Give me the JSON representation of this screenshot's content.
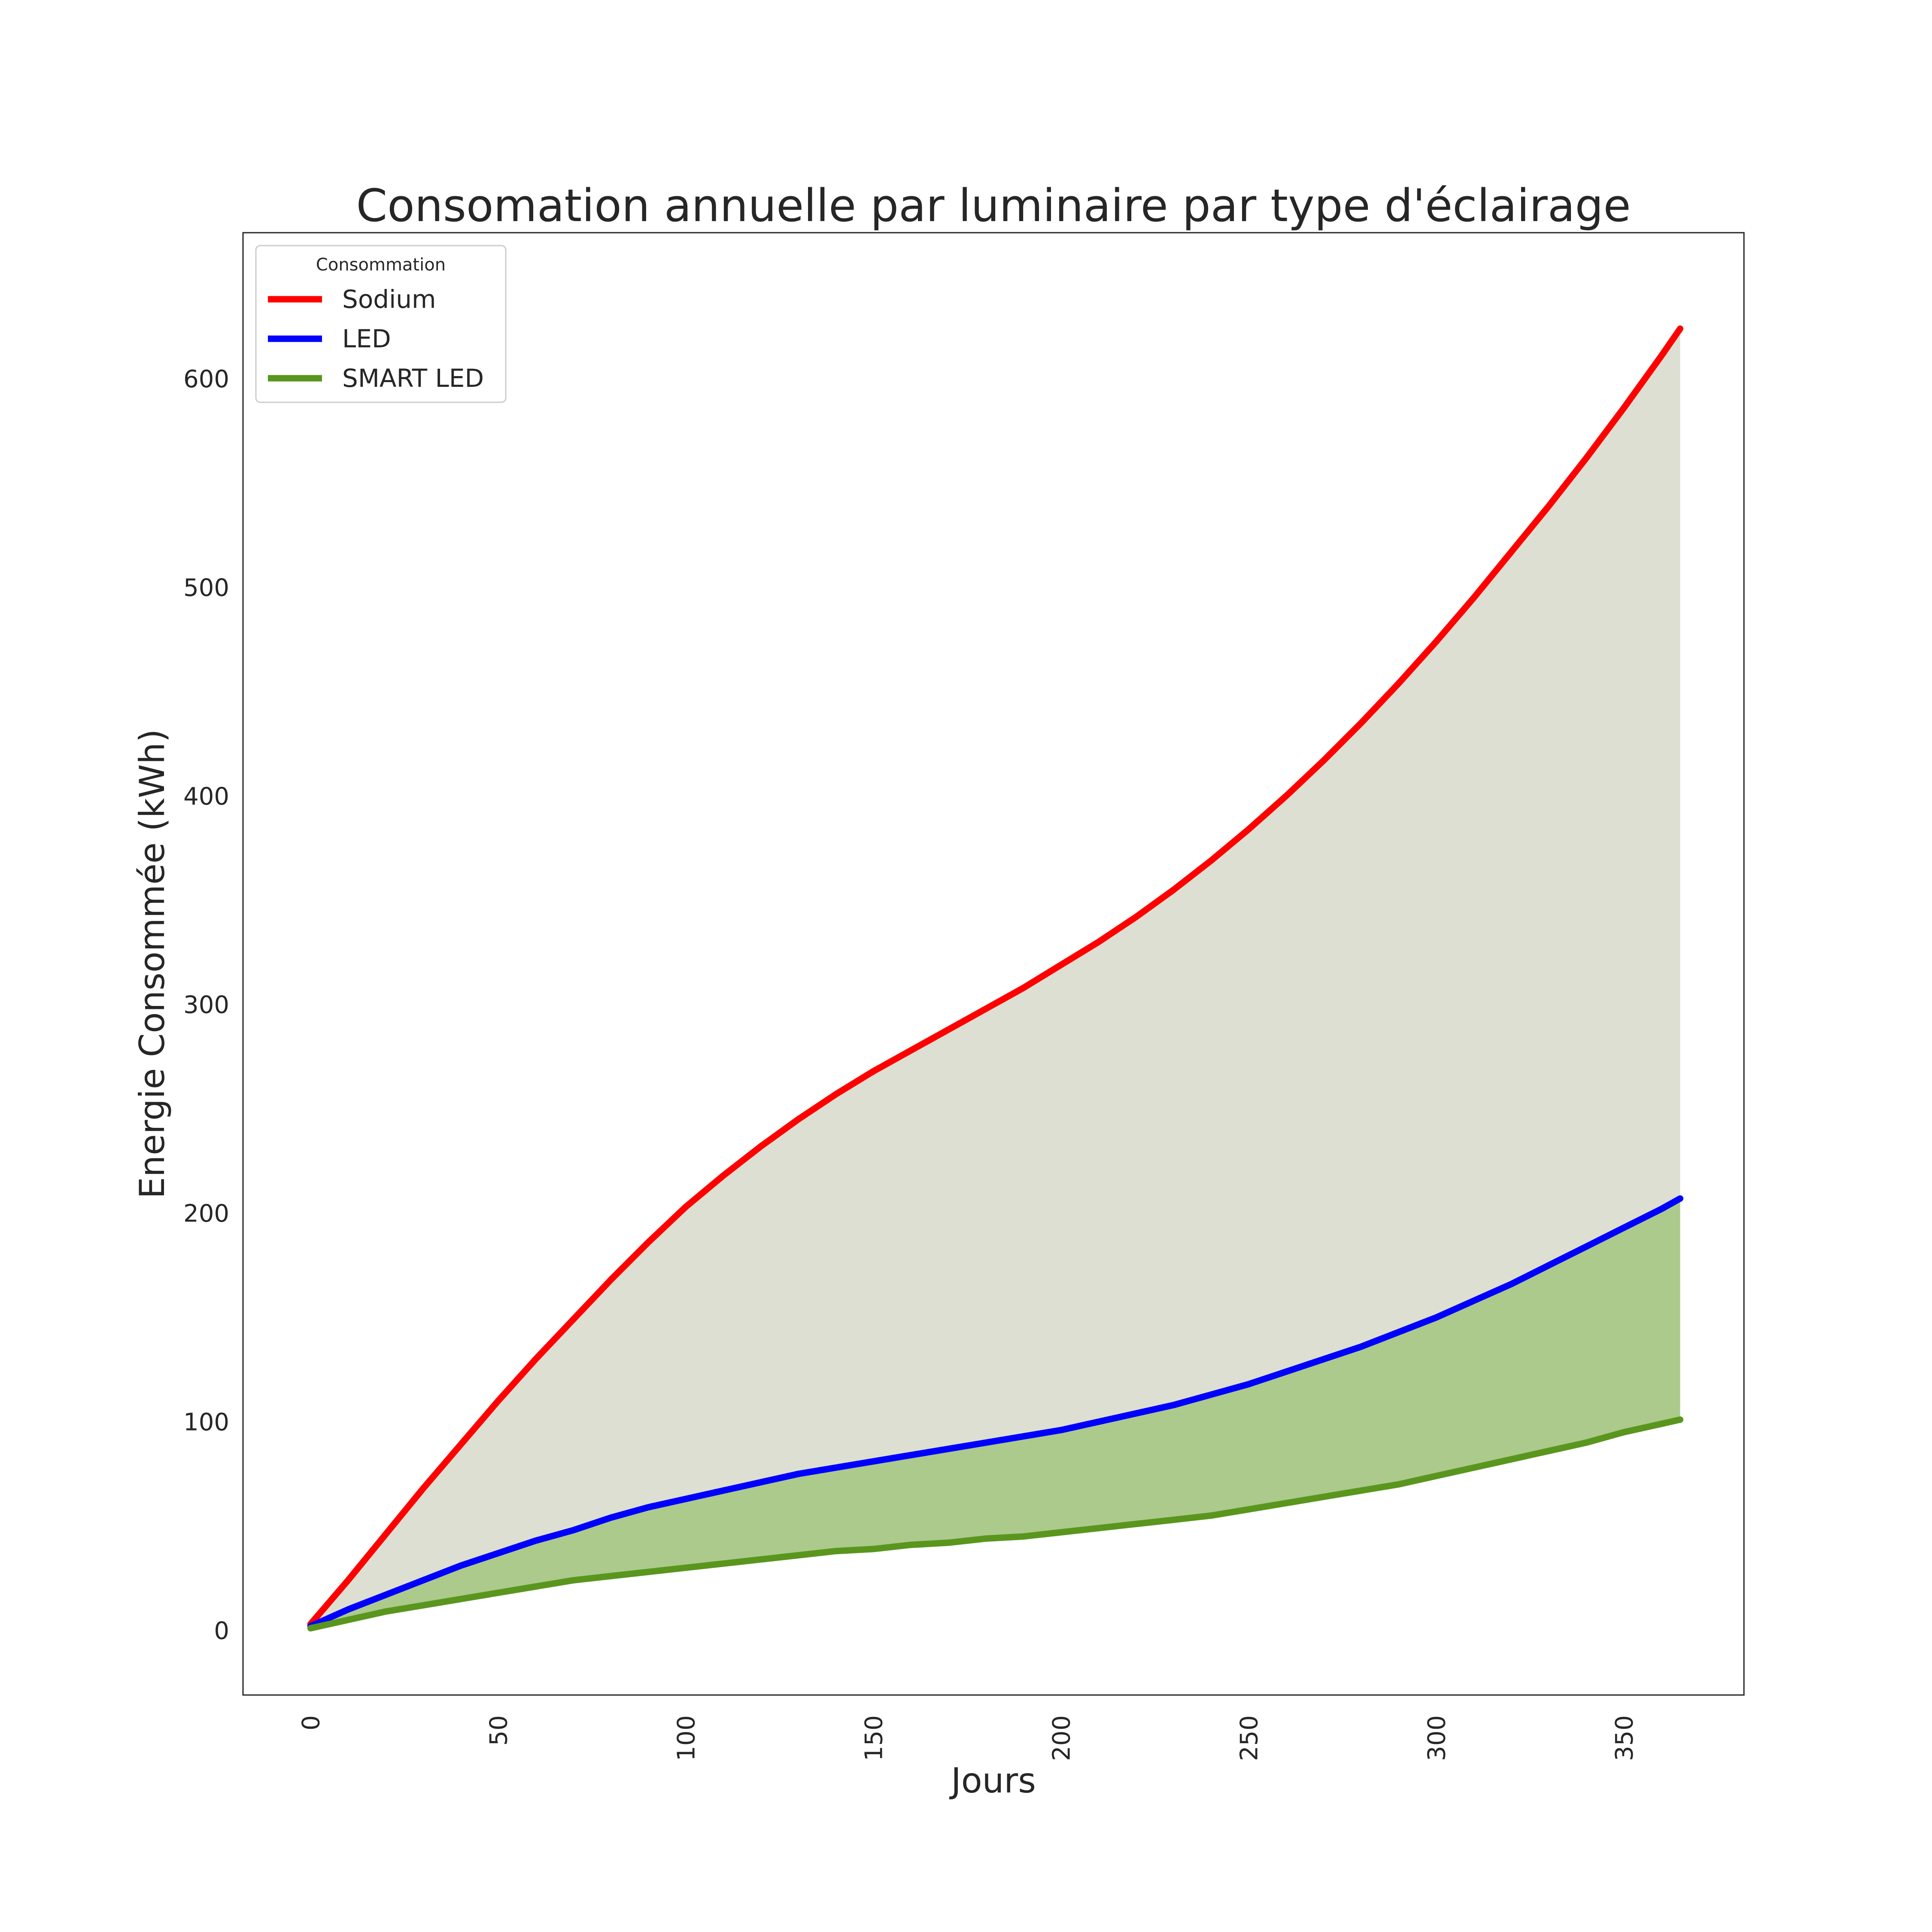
{
  "chart_data": {
    "type": "line",
    "title": "Consomation annuelle par luminaire par type d'éclairage",
    "xlabel": "Jours",
    "ylabel": "Energie Consommée (kWh)",
    "xlim": [
      -18,
      382
    ],
    "ylim": [
      -31,
      670
    ],
    "xticks": [
      0,
      50,
      100,
      150,
      200,
      250,
      300,
      350
    ],
    "yticks": [
      0,
      100,
      200,
      300,
      400,
      500,
      600
    ],
    "grid": false,
    "legend": {
      "title": "Consommation",
      "position": "top-left"
    },
    "x": [
      0,
      10,
      20,
      30,
      40,
      50,
      60,
      70,
      80,
      90,
      100,
      110,
      120,
      130,
      140,
      150,
      160,
      170,
      180,
      190,
      200,
      210,
      220,
      230,
      240,
      250,
      260,
      270,
      280,
      290,
      300,
      310,
      320,
      330,
      340,
      350,
      360,
      365
    ],
    "series": [
      {
        "name": "Sodium",
        "color": "#ff0000",
        "values": [
          3,
          24,
          46,
          68,
          89,
          110,
          130,
          149,
          168,
          186,
          203,
          218,
          232,
          245,
          257,
          268,
          278,
          288,
          298,
          308,
          319,
          330,
          342,
          355,
          369,
          384,
          400,
          417,
          435,
          454,
          474,
          495,
          517,
          539,
          562,
          586,
          611,
          624
        ]
      },
      {
        "name": "LED",
        "color": "#0000ff",
        "values": [
          2,
          10,
          17,
          24,
          31,
          37,
          43,
          48,
          54,
          59,
          63,
          67,
          71,
          75,
          78,
          81,
          84,
          87,
          90,
          93,
          96,
          100,
          104,
          108,
          113,
          118,
          124,
          130,
          136,
          143,
          150,
          158,
          166,
          175,
          184,
          193,
          202,
          207
        ]
      },
      {
        "name": "SMART LED",
        "color": "#5a961e",
        "values": [
          1,
          5,
          9,
          12,
          15,
          18,
          21,
          24,
          26,
          28,
          30,
          32,
          34,
          36,
          38,
          39,
          41,
          42,
          44,
          45,
          47,
          49,
          51,
          53,
          55,
          58,
          61,
          64,
          67,
          70,
          74,
          78,
          82,
          86,
          90,
          95,
          99,
          101
        ]
      }
    ],
    "fills": [
      {
        "between": [
          "Sodium",
          "LED"
        ],
        "color": "#dedfd3"
      },
      {
        "between": [
          "LED",
          "SMART LED"
        ],
        "color": "#abca8b"
      }
    ]
  }
}
